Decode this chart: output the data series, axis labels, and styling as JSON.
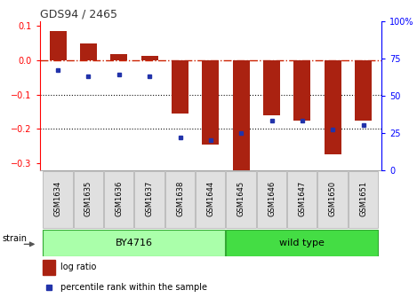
{
  "title": "GDS94 / 2465",
  "samples": [
    "GSM1634",
    "GSM1635",
    "GSM1636",
    "GSM1637",
    "GSM1638",
    "GSM1644",
    "GSM1645",
    "GSM1646",
    "GSM1647",
    "GSM1650",
    "GSM1651"
  ],
  "log_ratio": [
    0.085,
    0.05,
    0.018,
    0.013,
    -0.155,
    -0.245,
    -0.32,
    -0.16,
    -0.175,
    -0.275,
    -0.175
  ],
  "percentile_rank": [
    67,
    63,
    64,
    63,
    22,
    20,
    25,
    33,
    33,
    27,
    30
  ],
  "bar_color": "#aa2211",
  "dot_color": "#2233aa",
  "ylim_left": [
    -0.32,
    0.115
  ],
  "ylim_right": [
    0,
    100
  ],
  "yticks_left": [
    -0.3,
    -0.2,
    -0.1,
    0.0,
    0.1
  ],
  "yticks_right": [
    0,
    25,
    50,
    75,
    100
  ],
  "hline_zero_color": "#cc2200",
  "hline_dotted_color": "#111111",
  "hline_dotted_vals": [
    -0.1,
    -0.2
  ],
  "group1_label": "BY4716",
  "group1_indices": [
    0,
    1,
    2,
    3,
    4,
    5
  ],
  "group2_label": "wild type",
  "group2_indices": [
    6,
    7,
    8,
    9,
    10
  ],
  "group1_color": "#aaffaa",
  "group2_color": "#44dd44",
  "strain_label": "strain",
  "legend_logratio": "log ratio",
  "legend_percentile": "percentile rank within the sample",
  "bg_color": "#ffffff",
  "title_color": "#333333"
}
